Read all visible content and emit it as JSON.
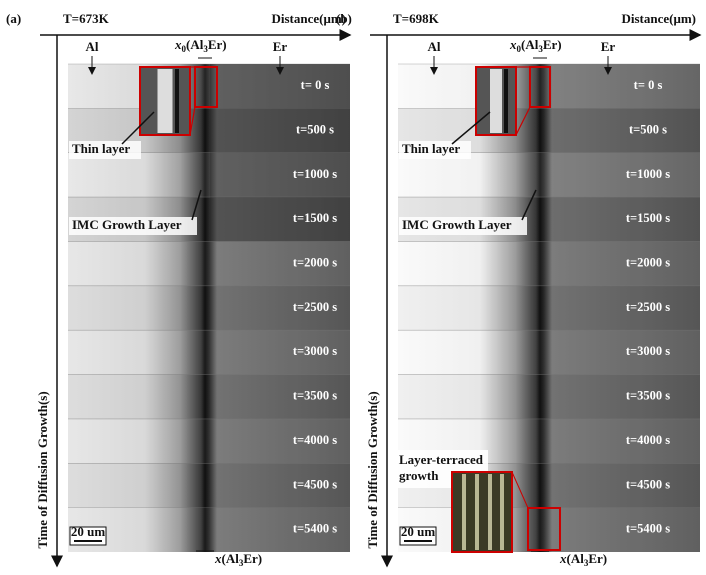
{
  "panels": [
    {
      "label": "(a)",
      "temperature": "T=673K",
      "x_axis": "Distance(μm)",
      "y_axis": "Time of Diffusion Growth(s)",
      "left_material": "Al",
      "right_material": "Er",
      "x0_label": [
        "x",
        "0",
        "(Al",
        "3",
        "Er)"
      ],
      "x_label": [
        "x",
        "(Al",
        "3",
        "Er)"
      ],
      "times": [
        "t= 0 s",
        "t=500 s",
        "t=1000 s",
        "t=1500 s",
        "t=2000 s",
        "t=2500 s",
        "t=3000 s",
        "t=3500 s",
        "t=4000 s",
        "t=4500 s",
        "t=5400 s"
      ],
      "annotations": [
        "Thin layer",
        "IMC Growth Layer"
      ],
      "scale_bar": "20 um"
    },
    {
      "label": "(b)",
      "temperature": "T=698K",
      "x_axis": "Distance(μm)",
      "y_axis": "Time of Diffusion Growth(s)",
      "left_material": "Al",
      "right_material": "Er",
      "x0_label": [
        "x",
        "0",
        "(Al",
        "3",
        "Er)"
      ],
      "x_label": [
        "x",
        "(Al",
        "3",
        "Er)"
      ],
      "times": [
        "t= 0 s",
        "t=500 s",
        "t=1000 s",
        "t=1500 s",
        "t=2000 s",
        "t=2500 s",
        "t=3000 s",
        "t=3500 s",
        "t=4000 s",
        "t=4500 s",
        "t=5400 s"
      ],
      "annotations": [
        "Thin layer",
        "IMC Growth Layer"
      ],
      "terrace_note": [
        "Layer-terraced",
        "growth"
      ],
      "scale_bar": "20 um"
    }
  ]
}
